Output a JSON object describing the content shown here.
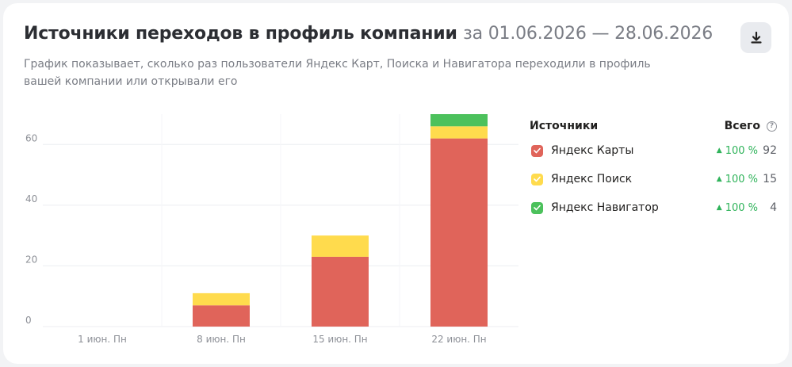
{
  "header": {
    "title": "Источники переходов в профиль компании",
    "period": "за 01.06.2026 — 28.06.2026",
    "subtitle": "График показывает, сколько раз пользователи Яндекс Карт, Поиска и Навигатора переходили в профиль вашей компании или открывали его",
    "download_icon": "download-icon"
  },
  "legend": {
    "title": "Источники",
    "total_label": "Всего",
    "help_icon": "?",
    "items": [
      {
        "name": "Яндекс Карты",
        "growth": "100 %",
        "total": "92",
        "color": "#e0645a",
        "checked": true
      },
      {
        "name": "Яндекс Поиск",
        "growth": "100 %",
        "total": "15",
        "color": "#ffdb4d",
        "checked": true
      },
      {
        "name": "Яндекс Навигатор",
        "growth": "100 %",
        "total": "4",
        "color": "#4cc15c",
        "checked": true
      }
    ]
  },
  "chart_data": {
    "type": "bar",
    "stacked": true,
    "categories": [
      "1 июн. Пн",
      "8 июн. Пн",
      "15 июн. Пн",
      "22 июн. Пн"
    ],
    "series": [
      {
        "name": "Яндекс Карты",
        "color": "#e0645a",
        "values": [
          0,
          7,
          23,
          62
        ]
      },
      {
        "name": "Яндекс Поиск",
        "color": "#ffdb4d",
        "values": [
          0,
          4,
          7,
          4
        ]
      },
      {
        "name": "Яндекс Навигатор",
        "color": "#4cc15c",
        "values": [
          0,
          0,
          0,
          4
        ]
      }
    ],
    "yticks": [
      0,
      20,
      40,
      60
    ],
    "ylim": [
      0,
      70
    ],
    "grid": true
  }
}
